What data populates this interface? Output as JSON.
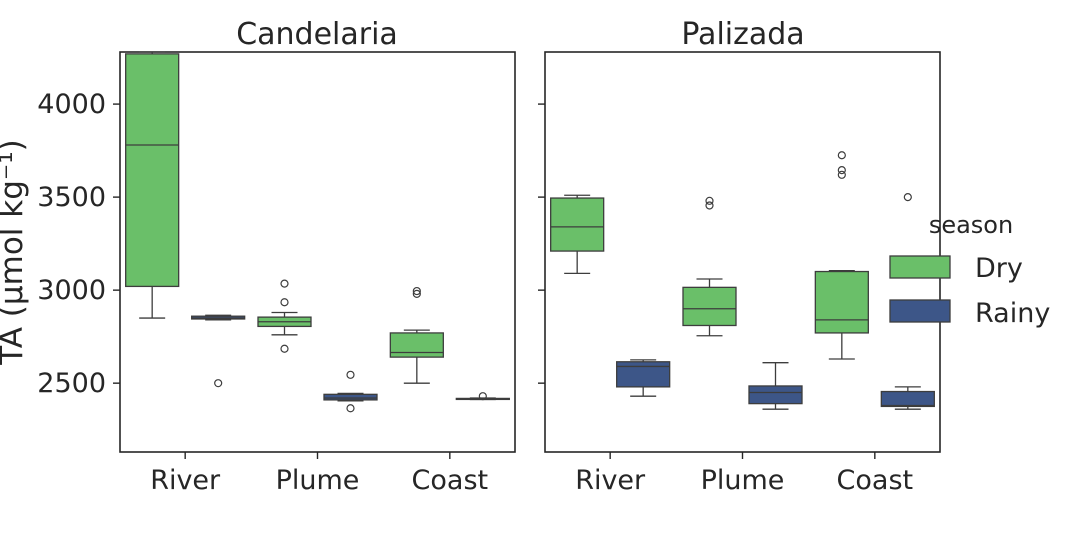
{
  "chart_data": {
    "type": "box",
    "ylabel": "TA (μmol kg⁻¹)",
    "ylim": [
      2130,
      4280
    ],
    "yticks": [
      2500,
      3000,
      3500,
      4000
    ],
    "categories": [
      "River",
      "Plume",
      "Coast"
    ],
    "legend": {
      "title": "season",
      "placement": "right",
      "entries": [
        {
          "label": "Dry",
          "color": "#6abf69"
        },
        {
          "label": "Rainy",
          "color": "#3d5688"
        }
      ]
    },
    "panels": [
      {
        "title": "Candelaria",
        "groups": [
          {
            "category": "River",
            "season": "Dry",
            "whislo": 2850,
            "q1": 3020,
            "med": 3780,
            "q3": 4270,
            "whishi": 4280,
            "fliers": []
          },
          {
            "category": "River",
            "season": "Rainy",
            "whislo": 2840,
            "q1": 2845,
            "med": 2850,
            "q3": 2860,
            "whishi": 2865,
            "fliers": [
              2500
            ]
          },
          {
            "category": "Plume",
            "season": "Dry",
            "whislo": 2760,
            "q1": 2805,
            "med": 2830,
            "q3": 2855,
            "whishi": 2880,
            "fliers": [
              2685,
              2935,
              3035
            ]
          },
          {
            "category": "Plume",
            "season": "Rainy",
            "whislo": 2405,
            "q1": 2410,
            "med": 2420,
            "q3": 2440,
            "whishi": 2445,
            "fliers": [
              2365,
              2545
            ]
          },
          {
            "category": "Coast",
            "season": "Dry",
            "whislo": 2500,
            "q1": 2640,
            "med": 2665,
            "q3": 2770,
            "whishi": 2785,
            "fliers": [
              2980,
              2995
            ]
          },
          {
            "category": "Coast",
            "season": "Rainy",
            "whislo": 2412,
            "q1": 2413,
            "med": 2415,
            "q3": 2418,
            "whishi": 2420,
            "fliers": [
              2430
            ]
          }
        ]
      },
      {
        "title": "Palizada",
        "groups": [
          {
            "category": "River",
            "season": "Dry",
            "whislo": 3090,
            "q1": 3210,
            "med": 3340,
            "q3": 3495,
            "whishi": 3510,
            "fliers": []
          },
          {
            "category": "River",
            "season": "Rainy",
            "whislo": 2430,
            "q1": 2480,
            "med": 2590,
            "q3": 2615,
            "whishi": 2625,
            "fliers": []
          },
          {
            "category": "Plume",
            "season": "Dry",
            "whislo": 2755,
            "q1": 2810,
            "med": 2900,
            "q3": 3015,
            "whishi": 3060,
            "fliers": [
              3455,
              3480
            ]
          },
          {
            "category": "Plume",
            "season": "Rainy",
            "whislo": 2360,
            "q1": 2390,
            "med": 2450,
            "q3": 2485,
            "whishi": 2610,
            "fliers": []
          },
          {
            "category": "Coast",
            "season": "Dry",
            "whislo": 2630,
            "q1": 2770,
            "med": 2840,
            "q3": 3100,
            "whishi": 3105,
            "fliers": [
              3620,
              3645,
              3725
            ]
          },
          {
            "category": "Coast",
            "season": "Rainy",
            "whislo": 2360,
            "q1": 2375,
            "med": 2380,
            "q3": 2455,
            "whishi": 2480,
            "fliers": [
              3500
            ]
          }
        ]
      }
    ]
  }
}
